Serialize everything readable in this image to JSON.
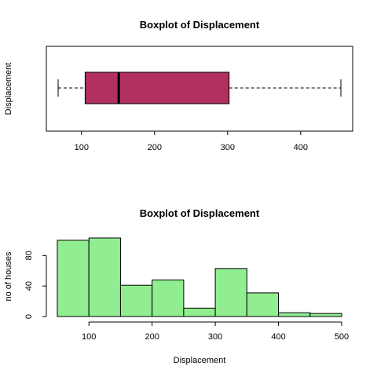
{
  "chart_data": [
    {
      "type": "boxplot",
      "title": "Boxplot of Displacement",
      "xlabel": "",
      "ylabel": "Displacement",
      "orientation": "horizontal",
      "xlim": [
        68,
        455
      ],
      "xticks": [
        100,
        200,
        300,
        400
      ],
      "stats": {
        "min": 68,
        "q1": 105,
        "median": 151,
        "q3": 302,
        "max": 455
      },
      "box_color": "#b03060"
    },
    {
      "type": "bar",
      "title": "Boxplot of Displacement",
      "xlabel": "Displacement",
      "ylabel": "no of houses",
      "bin_edges": [
        50,
        100,
        150,
        200,
        250,
        300,
        350,
        400,
        450,
        500
      ],
      "values": [
        100,
        103,
        41,
        48,
        11,
        63,
        31,
        5,
        4
      ],
      "xticks": [
        100,
        200,
        300,
        400,
        500
      ],
      "yticks": [
        0,
        40,
        80
      ],
      "ylim": [
        0,
        103
      ],
      "bar_color": "#90ee90"
    }
  ]
}
